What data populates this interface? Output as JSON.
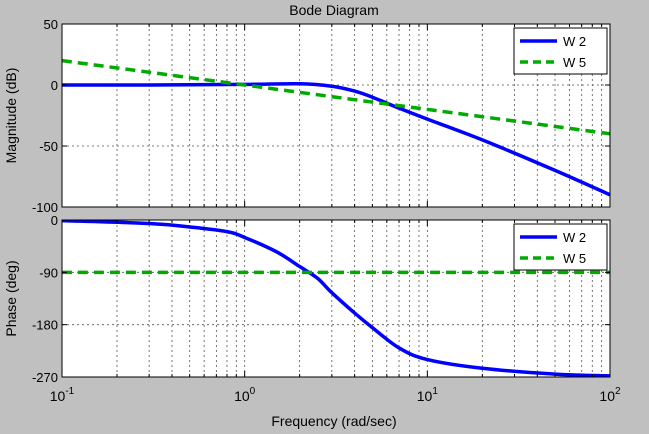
{
  "chart_data": {
    "type": "line",
    "title": "Bode Diagram",
    "xlabel": "Frequency  (rad/sec)",
    "x_scale": "log",
    "xlim": [
      0.1,
      100
    ],
    "x_ticks": [
      0.1,
      1,
      10,
      100
    ],
    "x_tick_labels": [
      {
        "base": "10",
        "exp": "-1"
      },
      {
        "base": "10",
        "exp": "0"
      },
      {
        "base": "10",
        "exp": "1"
      },
      {
        "base": "10",
        "exp": "2"
      }
    ],
    "grid": true,
    "colors": {
      "W 2": "#0000ff",
      "W 5": "#00aa00"
    },
    "panels": [
      {
        "name": "magnitude",
        "ylabel": "Magnitude (dB)",
        "ylim": [
          -100,
          50
        ],
        "y_ticks": [
          50,
          0,
          -50,
          -100
        ],
        "y_tick_labels": [
          "50",
          "0",
          "-50",
          "-100"
        ],
        "legend": "top-right",
        "series": [
          {
            "name": "W 2",
            "style": "solid",
            "x": [
              0.1,
              0.3,
              1,
              2,
              3,
              4,
              5,
              7,
              10,
              20,
              50,
              100
            ],
            "y": [
              0,
              0,
              0.5,
              1,
              -1,
              -5,
              -10,
              -19,
              -28,
              -45,
              -70,
              -90
            ]
          },
          {
            "name": "W 5",
            "style": "dashed",
            "x": [
              0.1,
              1,
              10,
              100
            ],
            "y": [
              20,
              0,
              -20,
              -40
            ]
          }
        ]
      },
      {
        "name": "phase",
        "ylabel": "Phase (deg)",
        "ylim": [
          -270,
          0
        ],
        "y_ticks": [
          0,
          -90,
          -180,
          -270
        ],
        "y_tick_labels": [
          "0",
          "-90",
          "-180",
          "-270"
        ],
        "legend": "top-right",
        "series": [
          {
            "name": "W 2",
            "style": "solid",
            "x": [
              0.1,
              0.3,
              0.5,
              0.8,
              1,
              1.5,
              2,
              2.5,
              3,
              4,
              5,
              7,
              10,
              20,
              50,
              100
            ],
            "y": [
              -1,
              -6,
              -12,
              -20,
              -30,
              -55,
              -80,
              -100,
              -125,
              -160,
              -185,
              -220,
              -240,
              -255,
              -265,
              -268
            ]
          },
          {
            "name": "W 5",
            "style": "dashed",
            "x": [
              0.1,
              100
            ],
            "y": [
              -90,
              -90
            ]
          }
        ]
      }
    ]
  }
}
